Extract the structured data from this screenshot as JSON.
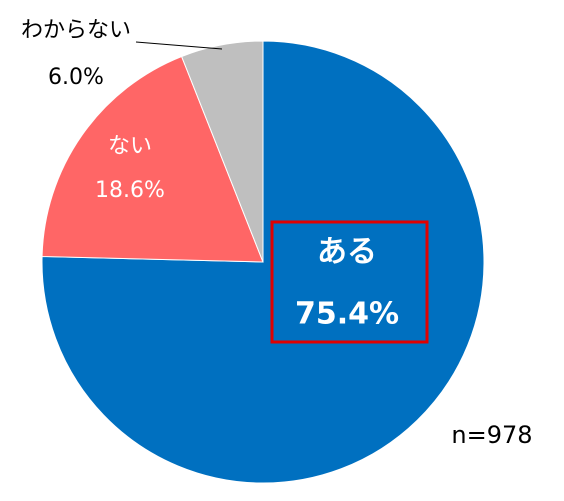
{
  "chart_data": {
    "type": "pie",
    "categories": [
      "ある",
      "ない",
      "わからない"
    ],
    "values": [
      75.4,
      18.6,
      6.0
    ],
    "value_labels": [
      "75.4%",
      "18.6%",
      "6.0%"
    ],
    "colors": [
      "#0070c0",
      "#ff6666",
      "#bfbfbf"
    ],
    "annotation": "n=978"
  }
}
